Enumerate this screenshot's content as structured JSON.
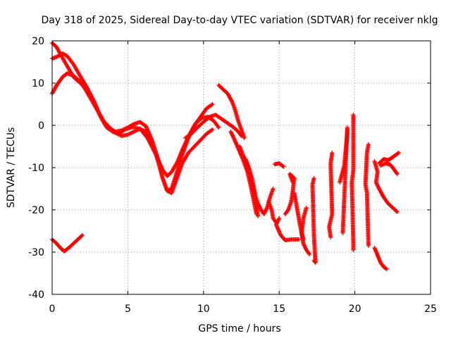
{
  "chart_data": {
    "type": "scatter",
    "title": "Day 318 of 2025, Sidereal Day-to-day VTEC variation (SDTVAR) for receiver nklg",
    "xlabel": "GPS time / hours",
    "ylabel": "SDTVAR / TECUs",
    "xlim": [
      0,
      25
    ],
    "ylim": [
      -40,
      20
    ],
    "xticks": [
      0,
      5,
      10,
      15,
      20,
      25
    ],
    "yticks": [
      -40,
      -30,
      -20,
      -10,
      0,
      10,
      20
    ],
    "xtick_labels": [
      "0",
      "5",
      "10",
      "15",
      "20",
      "25"
    ],
    "ytick_labels": [
      "-40",
      "-30",
      "-20",
      "-10",
      "0",
      "10",
      "20"
    ],
    "grid": true,
    "marker": "plus",
    "color": "#ff0000",
    "tracks": [
      {
        "name": "track-a",
        "points": [
          [
            0.0,
            15.8
          ],
          [
            0.3,
            16.2
          ],
          [
            0.7,
            17.0
          ],
          [
            1.0,
            16.4
          ],
          [
            1.4,
            14.5
          ],
          [
            1.8,
            12.0
          ],
          [
            2.3,
            9.0
          ],
          [
            2.8,
            5.5
          ],
          [
            3.2,
            2.0
          ],
          [
            3.6,
            -0.5
          ],
          [
            4.0,
            -1.5
          ],
          [
            4.4,
            -2.0
          ],
          [
            4.8,
            -1.0
          ],
          [
            5.3,
            -0.4
          ],
          [
            5.8,
            -0.8
          ],
          [
            6.3,
            -3.0
          ],
          [
            6.8,
            -6.5
          ],
          [
            7.3,
            -10.5
          ],
          [
            7.6,
            -12.0
          ],
          [
            7.9,
            -11.0
          ],
          [
            8.3,
            -8.5
          ],
          [
            8.7,
            -5.0
          ],
          [
            9.1,
            -2.0
          ],
          [
            9.5,
            0.5
          ],
          [
            9.9,
            1.8
          ],
          [
            10.3,
            2.0
          ],
          [
            10.7,
            1.0
          ],
          [
            11.0,
            -0.5
          ]
        ]
      },
      {
        "name": "track-b",
        "points": [
          [
            0.0,
            19.5
          ],
          [
            0.3,
            18.5
          ],
          [
            0.6,
            16.5
          ],
          [
            1.0,
            14.0
          ],
          [
            1.4,
            11.5
          ],
          [
            1.8,
            10.2
          ],
          [
            2.2,
            9.0
          ],
          [
            2.6,
            6.5
          ],
          [
            3.0,
            3.5
          ],
          [
            3.4,
            1.0
          ],
          [
            3.8,
            -0.8
          ],
          [
            4.2,
            -1.5
          ],
          [
            4.6,
            -1.2
          ],
          [
            5.0,
            -0.5
          ],
          [
            5.4,
            0.3
          ],
          [
            5.8,
            0.8
          ],
          [
            6.2,
            -0.2
          ],
          [
            6.6,
            -3.5
          ],
          [
            7.0,
            -8.0
          ],
          [
            7.3,
            -12.5
          ],
          [
            7.6,
            -15.5
          ],
          [
            7.9,
            -15.0
          ],
          [
            8.2,
            -11.5
          ],
          [
            8.6,
            -7.0
          ],
          [
            9.0,
            -3.0
          ],
          [
            9.4,
            0.0
          ],
          [
            9.8,
            2.0
          ],
          [
            10.2,
            4.0
          ],
          [
            10.6,
            5.0
          ]
        ]
      },
      {
        "name": "track-c",
        "points": [
          [
            0.0,
            7.5
          ],
          [
            0.3,
            9.5
          ],
          [
            0.7,
            11.5
          ],
          [
            1.0,
            12.3
          ],
          [
            1.4,
            11.8
          ],
          [
            1.8,
            10.5
          ],
          [
            2.2,
            8.5
          ],
          [
            2.6,
            6.0
          ],
          [
            3.0,
            3.5
          ],
          [
            3.4,
            1.0
          ],
          [
            3.8,
            -0.5
          ],
          [
            4.2,
            -1.8
          ],
          [
            4.6,
            -2.5
          ],
          [
            5.0,
            -2.2
          ],
          [
            5.4,
            -1.5
          ],
          [
            5.8,
            -0.8
          ],
          [
            6.2,
            -1.5
          ],
          [
            6.6,
            -4.0
          ],
          [
            7.0,
            -8.5
          ],
          [
            7.3,
            -12.5
          ],
          [
            7.6,
            -15.5
          ],
          [
            7.9,
            -16.0
          ],
          [
            8.2,
            -13.0
          ],
          [
            8.6,
            -9.0
          ],
          [
            9.0,
            -6.5
          ],
          [
            9.4,
            -5.0
          ],
          [
            9.8,
            -3.5
          ],
          [
            10.2,
            -2.0
          ],
          [
            10.6,
            -1.0
          ]
        ]
      },
      {
        "name": "track-d",
        "points": [
          [
            0.0,
            -27.0
          ],
          [
            0.3,
            -28.0
          ],
          [
            0.6,
            -29.2
          ],
          [
            0.8,
            -29.8
          ],
          [
            1.1,
            -29.0
          ],
          [
            1.4,
            -28.0
          ],
          [
            1.7,
            -27.0
          ],
          [
            2.0,
            -26.0
          ]
        ]
      },
      {
        "name": "track-e",
        "points": [
          [
            8.8,
            -3.0
          ],
          [
            9.2,
            -2.0
          ],
          [
            9.6,
            -0.5
          ],
          [
            10.0,
            0.8
          ],
          [
            10.4,
            2.0
          ],
          [
            10.8,
            2.5
          ],
          [
            11.2,
            1.5
          ],
          [
            11.6,
            0.5
          ],
          [
            12.0,
            -0.5
          ],
          [
            12.3,
            -1.5
          ],
          [
            12.5,
            -2.5
          ]
        ]
      },
      {
        "name": "track-f",
        "points": [
          [
            11.0,
            9.5
          ],
          [
            11.3,
            8.5
          ],
          [
            11.6,
            7.5
          ],
          [
            11.9,
            5.5
          ],
          [
            12.1,
            3.5
          ],
          [
            12.3,
            1.0
          ],
          [
            12.5,
            -1.0
          ],
          [
            12.7,
            -3.0
          ]
        ]
      },
      {
        "name": "track-g",
        "points": [
          [
            12.4,
            -5.0
          ],
          [
            12.6,
            -7.0
          ],
          [
            12.8,
            -8.5
          ],
          [
            13.0,
            -10.0
          ],
          [
            13.2,
            -12.5
          ],
          [
            13.4,
            -16.0
          ],
          [
            13.5,
            -19.0
          ],
          [
            13.6,
            -21.5
          ]
        ]
      },
      {
        "name": "track-h",
        "points": [
          [
            11.8,
            -1.5
          ],
          [
            12.0,
            -3.0
          ],
          [
            12.3,
            -5.5
          ],
          [
            12.6,
            -8.0
          ],
          [
            12.9,
            -11.0
          ],
          [
            13.1,
            -14.0
          ],
          [
            13.3,
            -17.5
          ],
          [
            13.5,
            -21.0
          ]
        ]
      },
      {
        "name": "track-i",
        "points": [
          [
            12.8,
            -8.0
          ],
          [
            13.0,
            -10.5
          ],
          [
            13.2,
            -13.5
          ],
          [
            13.4,
            -16.5
          ],
          [
            13.6,
            -18.5
          ],
          [
            13.8,
            -20.0
          ],
          [
            14.0,
            -21.0
          ],
          [
            14.2,
            -19.5
          ],
          [
            14.4,
            -17.0
          ],
          [
            14.6,
            -15.0
          ]
        ]
      },
      {
        "name": "track-j",
        "points": [
          [
            14.7,
            -9.2
          ],
          [
            15.0,
            -9.0
          ],
          [
            15.3,
            -9.8
          ]
        ]
      },
      {
        "name": "track-k",
        "points": [
          [
            15.0,
            -22.0
          ],
          [
            14.8,
            -23.5
          ],
          [
            15.1,
            -26.0
          ],
          [
            15.4,
            -27.2
          ],
          [
            15.8,
            -27.0
          ],
          [
            16.3,
            -27.0
          ]
        ]
      },
      {
        "name": "track-l",
        "points": [
          [
            15.4,
            -21.0
          ],
          [
            15.6,
            -20.0
          ],
          [
            15.8,
            -18.0
          ],
          [
            15.9,
            -15.5
          ],
          [
            16.0,
            -12.5
          ],
          [
            15.7,
            -11.5
          ],
          [
            15.9,
            -13.5
          ]
        ]
      },
      {
        "name": "track-m",
        "points": [
          [
            14.3,
            -18.0
          ],
          [
            14.5,
            -20.0
          ],
          [
            14.6,
            -22.0
          ],
          [
            14.8,
            -23.0
          ]
        ]
      },
      {
        "name": "track-n",
        "points": [
          [
            16.0,
            -16.0
          ],
          [
            16.6,
            -28.0
          ],
          [
            16.8,
            -29.5
          ],
          [
            17.0,
            -30.5
          ]
        ]
      },
      {
        "name": "track-o",
        "points": [
          [
            16.8,
            -19.5
          ],
          [
            16.6,
            -22.0
          ],
          [
            16.5,
            -25.5
          ],
          [
            16.6,
            -27.0
          ]
        ]
      },
      {
        "name": "track-p",
        "points": [
          [
            17.3,
            -12.5
          ],
          [
            17.2,
            -14.0
          ],
          [
            17.3,
            -26.5
          ],
          [
            17.4,
            -32.5
          ],
          [
            17.3,
            -32.0
          ]
        ]
      },
      {
        "name": "track-q",
        "points": [
          [
            18.5,
            -6.5
          ],
          [
            18.4,
            -9.0
          ],
          [
            18.5,
            -21.0
          ],
          [
            18.3,
            -24.0
          ],
          [
            18.4,
            -26.5
          ]
        ]
      },
      {
        "name": "track-r",
        "points": [
          [
            19.2,
            -25.5
          ],
          [
            19.5,
            -0.5
          ],
          [
            19.5,
            -2.0
          ],
          [
            19.3,
            -9.5
          ],
          [
            19.0,
            -13.5
          ]
        ]
      },
      {
        "name": "track-s",
        "points": [
          [
            19.9,
            2.5
          ],
          [
            19.9,
            -3.5
          ],
          [
            19.9,
            -9.0
          ],
          [
            19.9,
            -10.5
          ],
          [
            19.8,
            -13.5
          ],
          [
            19.9,
            -28.0
          ],
          [
            19.9,
            -29.5
          ]
        ]
      },
      {
        "name": "track-t",
        "points": [
          [
            20.9,
            -4.5
          ],
          [
            20.8,
            -6.5
          ],
          [
            20.7,
            -14.0
          ],
          [
            20.8,
            -16.0
          ],
          [
            20.9,
            -28.5
          ]
        ]
      },
      {
        "name": "track-u",
        "points": [
          [
            21.3,
            -8.5
          ],
          [
            21.5,
            -11.0
          ],
          [
            21.4,
            -13.5
          ],
          [
            21.6,
            -15.0
          ],
          [
            21.9,
            -17.0
          ],
          [
            22.2,
            -18.5
          ],
          [
            22.5,
            -19.5
          ],
          [
            22.8,
            -20.5
          ]
        ]
      },
      {
        "name": "track-v",
        "points": [
          [
            21.6,
            -9.0
          ],
          [
            21.9,
            -8.0
          ],
          [
            22.2,
            -8.2
          ],
          [
            22.4,
            -7.8
          ],
          [
            22.7,
            -7.0
          ],
          [
            22.9,
            -6.5
          ]
        ]
      },
      {
        "name": "track-w",
        "points": [
          [
            21.7,
            -9.5
          ],
          [
            22.0,
            -9.0
          ],
          [
            22.3,
            -9.2
          ],
          [
            22.5,
            -10.0
          ],
          [
            22.7,
            -11.0
          ],
          [
            22.8,
            -11.5
          ]
        ]
      },
      {
        "name": "track-x",
        "points": [
          [
            21.3,
            -29.0
          ],
          [
            21.7,
            -32.5
          ],
          [
            21.9,
            -33.5
          ],
          [
            22.1,
            -34.0
          ]
        ]
      }
    ]
  }
}
